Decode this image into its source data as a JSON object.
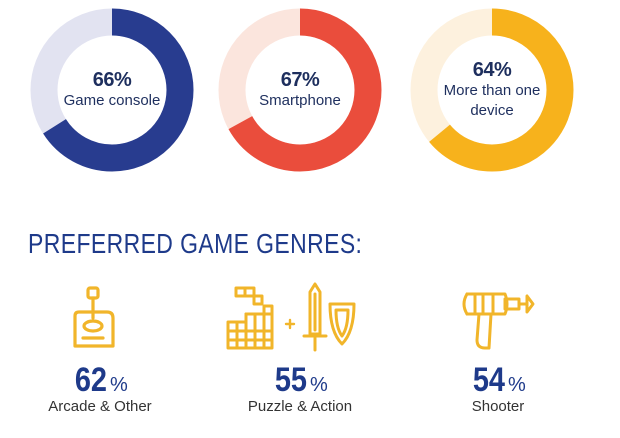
{
  "chart_data": [
    {
      "type": "pie",
      "style": "donut",
      "series": [
        {
          "value": 66,
          "value_label": "66%",
          "name": "Game console",
          "color": "#283c8f",
          "track": "#e2e3f1"
        },
        {
          "value": 67,
          "value_label": "67%",
          "name": "Smartphone",
          "color": "#ea4d3c",
          "track": "#fbe5dd"
        },
        {
          "value": 64,
          "value_label": "64%",
          "name": "More than one device",
          "color": "#f7b21c",
          "track": "#fdf1de"
        }
      ]
    },
    {
      "type": "table",
      "title": "PREFERRED GAME GENRES:",
      "rows": [
        {
          "name": "Arcade & Other",
          "value": 62,
          "value_text": "62",
          "unit": "%",
          "icon": "joystick-icon"
        },
        {
          "name": "Puzzle & Action",
          "value": 55,
          "value_text": "55",
          "unit": "%",
          "icon": "blocks-sword-shield-icon"
        },
        {
          "name": "Shooter",
          "value": 54,
          "value_text": "54",
          "unit": "%",
          "icon": "ray-gun-icon"
        }
      ]
    }
  ],
  "colors": {
    "navy": "#1e3a8a",
    "icon": "#f1b52a",
    "text": "#333333"
  }
}
